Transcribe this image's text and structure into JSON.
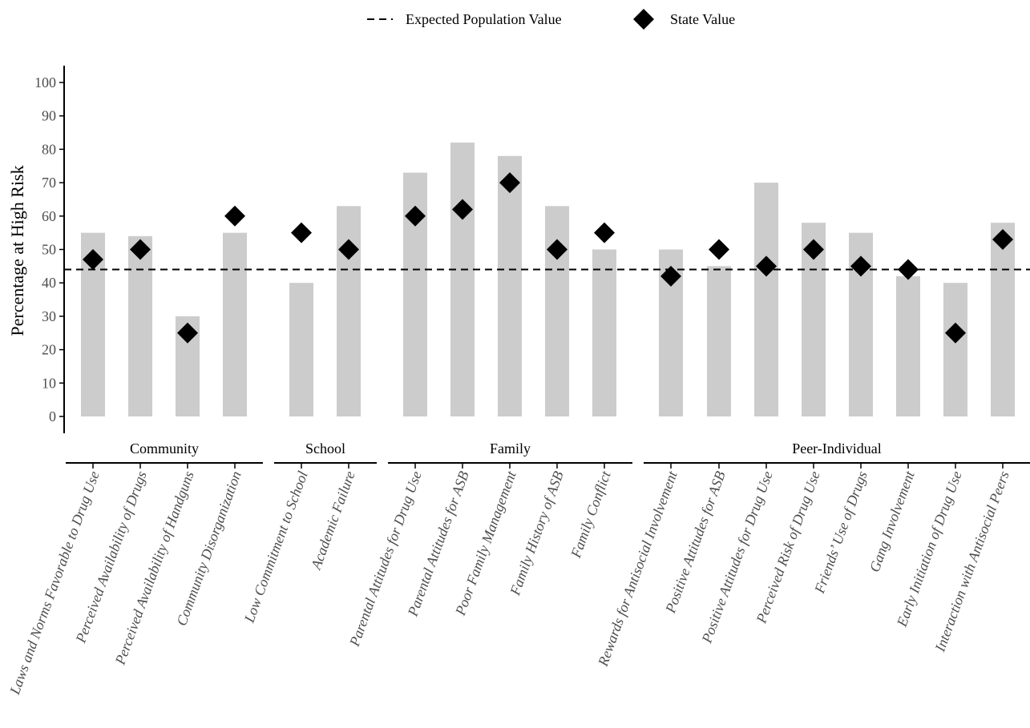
{
  "chart_data": {
    "type": "bar",
    "ylabel": "Percentage at High Risk",
    "ylim": [
      0,
      100
    ],
    "yticks": [
      0,
      10,
      20,
      30,
      40,
      50,
      60,
      70,
      80,
      90,
      100
    ],
    "grid": false,
    "legend_position": "top",
    "legend": {
      "line_label": "Expected Population Value",
      "point_label": "State Value"
    },
    "reference_line": {
      "value": 44,
      "style": "dashed"
    },
    "colors": {
      "bar": "#cccccc",
      "point": "#000000",
      "line": "#000000",
      "axis": "#000000",
      "text": "#4d4d4d"
    },
    "groups": [
      {
        "name": "Community",
        "categories": [
          "Laws and Norms Favorable to Drug Use",
          "Perceived Availability of Drugs",
          "Perceived Availability of Handguns",
          "Community Disorganization"
        ],
        "bar_values": [
          55,
          54,
          30,
          55
        ],
        "state_values": [
          47,
          50,
          25,
          60
        ]
      },
      {
        "name": "School",
        "categories": [
          "Low Commitment to School",
          "Academic Failure"
        ],
        "bar_values": [
          40,
          63
        ],
        "state_values": [
          55,
          50
        ]
      },
      {
        "name": "Family",
        "categories": [
          "Parental Attitudes for Drug Use",
          "Parental Attitudes for ASB",
          "Poor Family Management",
          "Family History of ASB",
          "Family Conflict"
        ],
        "bar_values": [
          73,
          82,
          78,
          63,
          50
        ],
        "state_values": [
          60,
          62,
          70,
          50,
          55
        ]
      },
      {
        "name": "Peer-Individual",
        "categories": [
          "Rewards for Antisocial Involvement",
          "Positive Attitudes for ASB",
          "Positive Attitudes for Drug Use",
          "Perceived Risk of Drug Use",
          "Friends’ Use of Drugs",
          "Gang Involvement",
          "Early Initiation of Drug Use",
          "Interaction with Antisocial Peers"
        ],
        "bar_values": [
          50,
          45,
          70,
          58,
          55,
          42,
          40,
          58
        ],
        "state_values": [
          42,
          50,
          45,
          50,
          45,
          44,
          25,
          53
        ]
      }
    ]
  }
}
